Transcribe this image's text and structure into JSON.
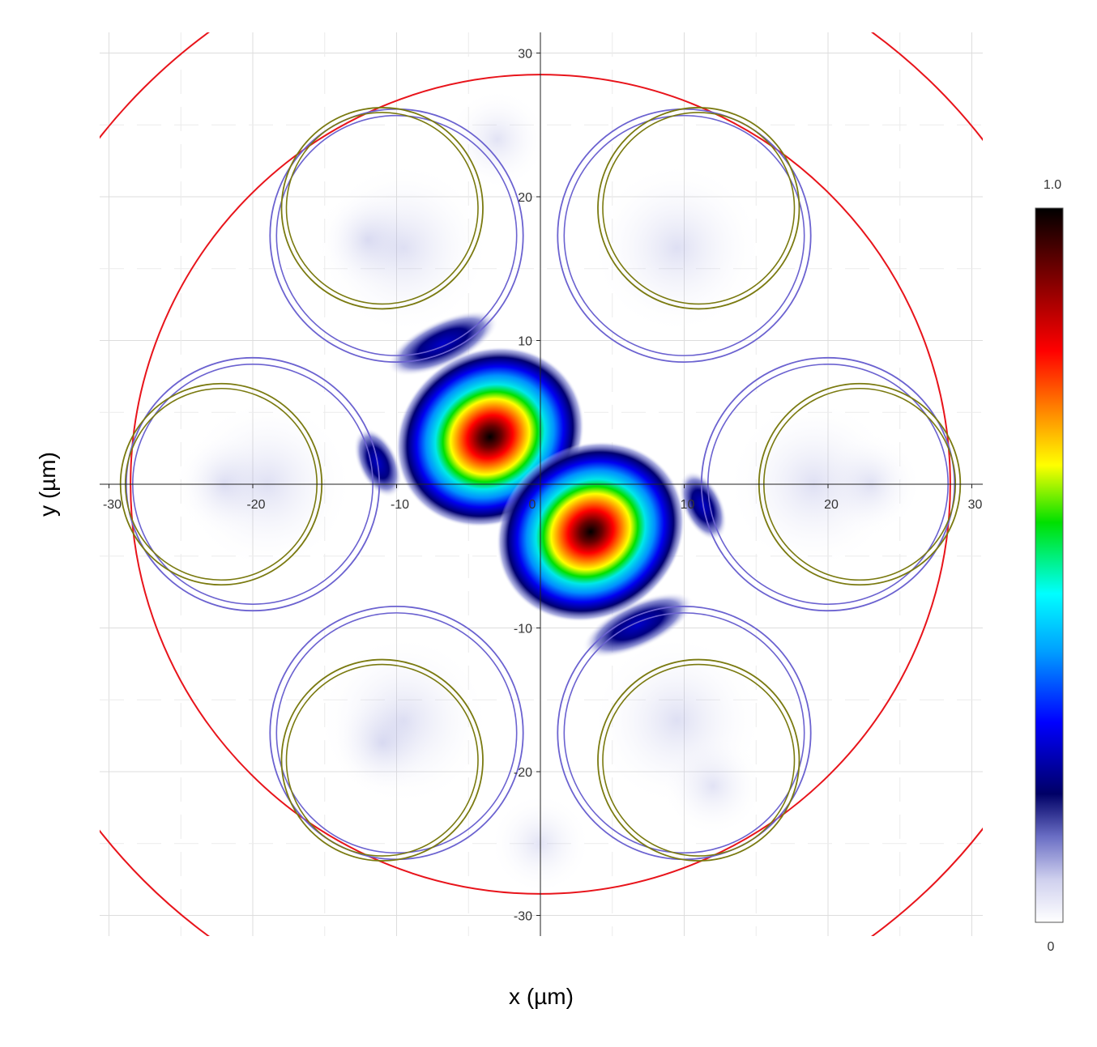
{
  "chart_data": {
    "type": "heatmap",
    "title": "",
    "xlabel": "x (µm)",
    "ylabel": "y (µm)",
    "xlim": [
      -31,
      31
    ],
    "ylim": [
      -31,
      31
    ],
    "x_ticks": [
      -30,
      -20,
      -10,
      0,
      10,
      20,
      30
    ],
    "y_ticks": [
      30,
      20,
      10,
      0,
      -10,
      -20,
      -30
    ],
    "tick_labels_x": [
      "-30",
      "-20",
      "-10",
      "0",
      "10",
      "20",
      "30"
    ],
    "tick_labels_y": [
      "30",
      "20",
      "10",
      "0",
      "-10",
      "-20",
      "-30"
    ],
    "grid": true,
    "colorbar": {
      "min_label": "0",
      "max_label": "1.0",
      "min": 0,
      "max": 1.0,
      "colormap_stops": [
        "#ffffff",
        "#cfd0ee",
        "#6a6ec4",
        "#000066",
        "#0000ff",
        "#00a0ff",
        "#00ffff",
        "#00e000",
        "#ffff00",
        "#ff8000",
        "#ff0000",
        "#800000",
        "#000000"
      ]
    },
    "field_lobes": [
      {
        "x": -3.5,
        "y": 3.3,
        "peak": 1.0
      },
      {
        "x": 3.5,
        "y": -3.3,
        "peak": 1.0
      }
    ],
    "weak_lobes": [
      {
        "x": -11.3,
        "y": 1.5,
        "peak": 0.3
      },
      {
        "x": 11.3,
        "y": -1.5,
        "peak": 0.3
      },
      {
        "x": -6.8,
        "y": 9.8,
        "peak": 0.35
      },
      {
        "x": 6.8,
        "y": -9.8,
        "peak": 0.35
      }
    ],
    "outer_red_circles": [
      {
        "cx": 0,
        "cy": 0,
        "r": 28.5,
        "color": "#e8141b"
      },
      {
        "cx": 0,
        "cy": 0,
        "r": 39.0,
        "color": "#e8141b"
      }
    ],
    "blue_rings": [
      {
        "cx": 10,
        "cy": 17.3,
        "r": 8.8
      },
      {
        "cx": -10,
        "cy": 17.3,
        "r": 8.8
      },
      {
        "cx": 20,
        "cy": 0,
        "r": 8.8
      },
      {
        "cx": -20,
        "cy": 0,
        "r": 8.8
      },
      {
        "cx": 10,
        "cy": -17.3,
        "r": 8.8
      },
      {
        "cx": -10,
        "cy": -17.3,
        "r": 8.8
      }
    ],
    "olive_rings": [
      {
        "cx": 11,
        "cy": 19.2,
        "r": 7.0
      },
      {
        "cx": -11,
        "cy": 19.2,
        "r": 7.0
      },
      {
        "cx": 22.2,
        "cy": 0,
        "r": 7.0
      },
      {
        "cx": -22.2,
        "cy": 0,
        "r": 7.0
      },
      {
        "cx": 11,
        "cy": -19.2,
        "r": 7.0
      },
      {
        "cx": -11,
        "cy": -19.2,
        "r": 7.0
      }
    ],
    "colors": {
      "red_circle": "#e8141b",
      "blue_ring": "#6b62d0",
      "olive_ring": "#7a7a10",
      "haze": "#7a7fcf"
    }
  }
}
